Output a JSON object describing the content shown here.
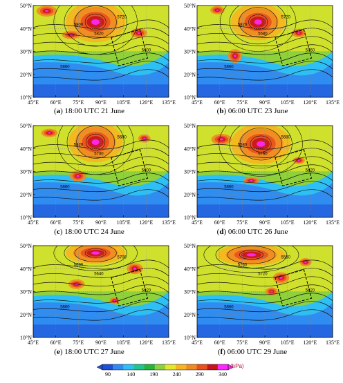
{
  "colors": {
    "scale": [
      "#1f4fd6",
      "#2f8cf0",
      "#2ec0f4",
      "#20c48c",
      "#27b43a",
      "#8fd13a",
      "#e6e62a",
      "#f6b520",
      "#f08a22",
      "#ea4f1e",
      "#c8141e",
      "#ff28ff"
    ],
    "contour": "#111111",
    "box": "#000000"
  },
  "axes": {
    "lat_ticks": [
      "50°N",
      "40°N",
      "30°N",
      "20°N",
      "10°N"
    ],
    "lon_ticks": [
      "45°E",
      "60°E",
      "75°E",
      "90°E",
      "105°E",
      "120°E",
      "135°E"
    ]
  },
  "panels": [
    {
      "id": "a",
      "caption_letter": "a",
      "caption_text": "18:00 UTC 21 June",
      "contour_labels": [
        "5720",
        "5820",
        "5800",
        "5600",
        "5860"
      ]
    },
    {
      "id": "b",
      "caption_letter": "b",
      "caption_text": "06:00 UTC 23 June",
      "contour_labels": [
        "5720",
        "5580",
        "5820",
        "5760",
        "5860"
      ]
    },
    {
      "id": "c",
      "caption_letter": "c",
      "caption_text": "18:00 UTC 24 June",
      "contour_labels": [
        "5680",
        "5700",
        "5820",
        "5600",
        "5860"
      ]
    },
    {
      "id": "d",
      "caption_letter": "d",
      "caption_text": "06:00 UTC 26 June",
      "contour_labels": [
        "5680",
        "5760",
        "5580",
        "5820",
        "5860"
      ]
    },
    {
      "id": "e",
      "caption_letter": "e",
      "caption_text": "18:00 UTC 27 June",
      "contour_labels": [
        "5700",
        "5640",
        "5680",
        "5820",
        "5860"
      ]
    },
    {
      "id": "f",
      "caption_letter": "f",
      "caption_text": "06:00 UTC 29 June",
      "contour_labels": [
        "5560",
        "5720",
        "5760",
        "5820",
        "5860"
      ]
    }
  ],
  "colorbar": {
    "ticks": [
      "90",
      "140",
      "190",
      "240",
      "290",
      "340"
    ],
    "unit": "(hPa)"
  }
}
